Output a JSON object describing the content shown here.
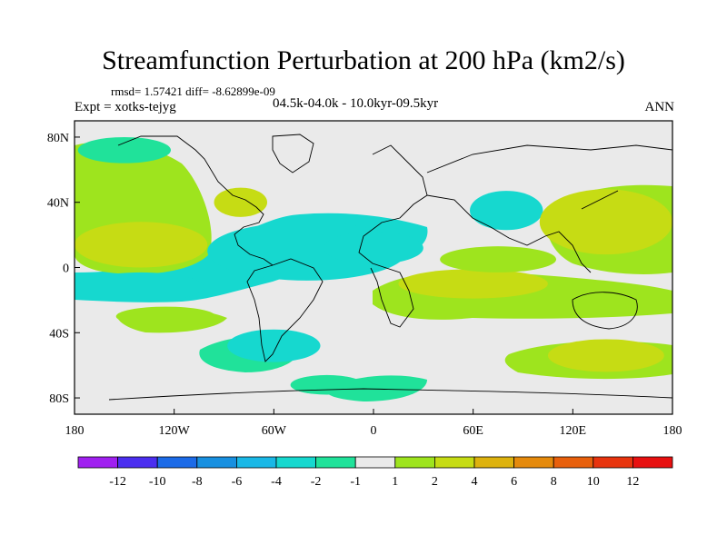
{
  "header": {
    "title": "Streamfunction Perturbation at 200 hPa (km2/s)",
    "stats": "rmsd= 1.57421 diff= -8.62899e-09",
    "experiment": "Expt = xotks-tejyg",
    "period": "04.5k-04.0k - 10.0kyr-09.5kyr",
    "season": "ANN"
  },
  "chart_data": {
    "type": "heatmap",
    "title": "Streamfunction Perturbation at 200 hPa (km2/s)",
    "projection": "cylindrical-equidistant",
    "xlim": [
      -180,
      180
    ],
    "ylim": [
      -90,
      90
    ],
    "x_ticks": [
      {
        "value": -180,
        "label": "180"
      },
      {
        "value": -120,
        "label": "120W"
      },
      {
        "value": -60,
        "label": "60W"
      },
      {
        "value": 0,
        "label": "0"
      },
      {
        "value": 60,
        "label": "60E"
      },
      {
        "value": 120,
        "label": "120E"
      },
      {
        "value": 180,
        "label": "180"
      }
    ],
    "y_ticks": [
      {
        "value": 80,
        "label": "80N"
      },
      {
        "value": 40,
        "label": "40N"
      },
      {
        "value": 0,
        "label": "0"
      },
      {
        "value": -40,
        "label": "40S"
      },
      {
        "value": -80,
        "label": "80S"
      }
    ],
    "colorbar": {
      "labels": [
        "-12",
        "-10",
        "-8",
        "-6",
        "-4",
        "-2",
        "-1",
        "1",
        "2",
        "4",
        "6",
        "8",
        "10",
        "12"
      ],
      "colors": [
        "#a020f0",
        "#4b2ef0",
        "#1c6be8",
        "#1890e0",
        "#1ab8e6",
        "#16d8cf",
        "#20e29a",
        "#eaeaea",
        "#9ee41e",
        "#c6dc14",
        "#ddb20e",
        "#e58a0c",
        "#e8600c",
        "#e8340e",
        "#e81010"
      ]
    },
    "anomalies": [
      {
        "lon": -40,
        "lat": 10,
        "rx": 60,
        "ry": 18,
        "value": -2
      },
      {
        "lon": 0,
        "lat": 12,
        "rx": 30,
        "ry": 10,
        "value": -3
      },
      {
        "lon": -140,
        "lat": -12,
        "rx": 38,
        "ry": 9,
        "value": -2
      },
      {
        "lon": 80,
        "lat": 35,
        "rx": 22,
        "ry": 12,
        "value": -3
      },
      {
        "lon": -60,
        "lat": -48,
        "rx": 28,
        "ry": 10,
        "value": -2
      },
      {
        "lon": -28,
        "lat": -72,
        "rx": 22,
        "ry": 6,
        "value": -1.5
      },
      {
        "lon": -150,
        "lat": 72,
        "rx": 28,
        "ry": 8,
        "value": -1.5
      },
      {
        "lon": -140,
        "lat": 14,
        "rx": 40,
        "ry": 14,
        "value": 3
      },
      {
        "lon": -80,
        "lat": 40,
        "rx": 16,
        "ry": 9,
        "value": 3
      },
      {
        "lon": 140,
        "lat": 28,
        "rx": 40,
        "ry": 20,
        "value": 4
      },
      {
        "lon": 140,
        "lat": -54,
        "rx": 35,
        "ry": 10,
        "value": 3
      },
      {
        "lon": 60,
        "lat": -10,
        "rx": 45,
        "ry": 9,
        "value": 2.5
      },
      {
        "lon": -125,
        "lat": -30,
        "rx": 30,
        "ry": 6,
        "value": 2
      },
      {
        "lon": 75,
        "lat": 5,
        "rx": 35,
        "ry": 8,
        "value": 2
      }
    ]
  }
}
